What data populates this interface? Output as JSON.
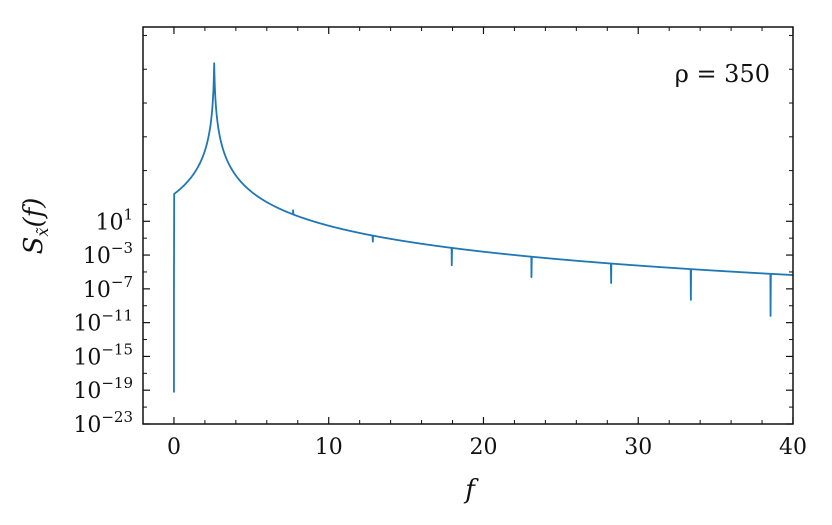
{
  "chart_data": {
    "type": "line",
    "xlabel": "f",
    "ylabel": "S_x̃(f)",
    "annotation": "ρ = 350",
    "xlim": [
      -2,
      40
    ],
    "ylim_log10": [
      -23,
      24
    ],
    "y_scale": "log",
    "grid": false,
    "x_ticks": [
      0,
      10,
      20,
      30,
      40
    ],
    "y_ticks_exponent": [
      1,
      -3,
      -7,
      -11,
      -15,
      -19,
      -23
    ],
    "series": [
      {
        "color": "#1f77b4",
        "floor_log10": [
          [
            0,
            -19.2
          ],
          [
            5,
            -19.9
          ],
          [
            10,
            -20.5
          ],
          [
            15,
            -21.4
          ],
          [
            17,
            -23.0
          ],
          [
            40,
            -23.0
          ]
        ],
        "noise_spikes": [
          {
            "x": 5.1,
            "log10": -18.1
          },
          {
            "x": 10.3,
            "log10": -18.5
          },
          {
            "x": 15.2,
            "log10": -19.6
          },
          {
            "x": 20.3,
            "log10": -20.0
          },
          {
            "x": 25.4,
            "log10": -20.0
          },
          {
            "x": 30.5,
            "log10": -20.0
          },
          {
            "x": 35.6,
            "log10": -20.0
          },
          {
            "x": 39.9,
            "log10": -20.0
          }
        ],
        "peaks": [
          {
            "f": 0.0,
            "log10": -6.6
          },
          {
            "f": 2.6,
            "log10": 19.7
          },
          {
            "f": 7.7,
            "log10": 2.3
          },
          {
            "f": 12.85,
            "log10": -1.4
          },
          {
            "f": 17.95,
            "log10": -4.2
          },
          {
            "f": 23.1,
            "log10": -5.6
          },
          {
            "f": 28.25,
            "log10": -6.3
          },
          {
            "f": 33.4,
            "log10": -8.3
          },
          {
            "f": 38.55,
            "log10": -10.2
          }
        ]
      }
    ]
  },
  "labels": {
    "xlabel": "f",
    "ylabel_main": "S",
    "ylabel_sub": "x̃",
    "ylabel_args": "(f)",
    "annotation": "ρ = 350",
    "x_tick_labels": [
      "0",
      "10",
      "20",
      "30",
      "40"
    ],
    "y_tick_base": "10",
    "y_tick_exponents": [
      "1",
      "−3",
      "−7",
      "−11",
      "−15",
      "−19",
      "−23"
    ]
  }
}
